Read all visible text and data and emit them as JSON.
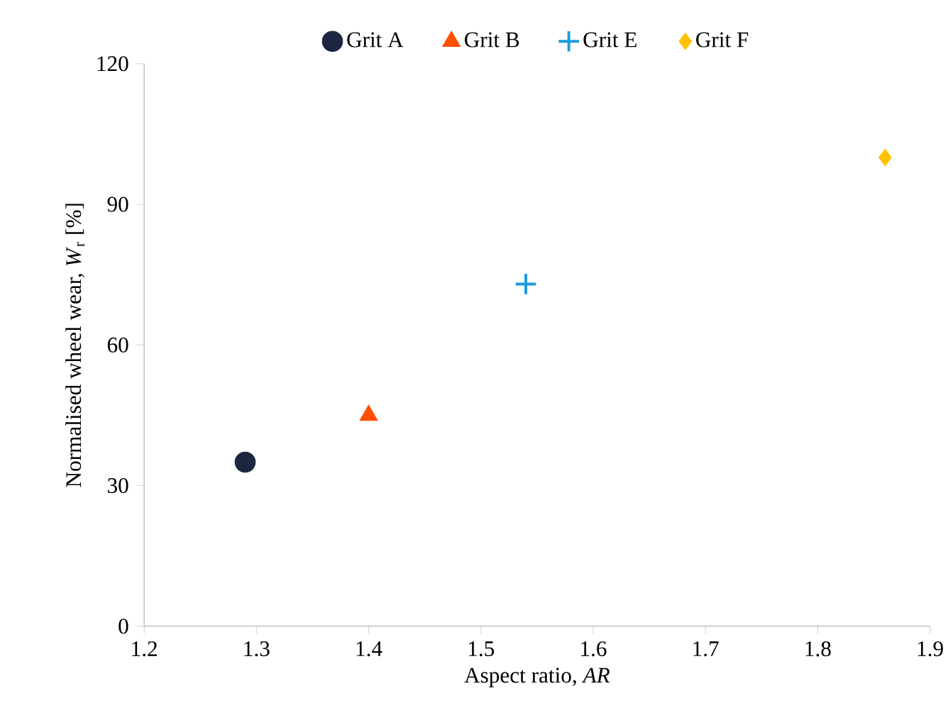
{
  "chart_data": {
    "type": "scatter",
    "xlabel": "Aspect ratio, *AR*",
    "ylabel": "Normalised wheel wear, *W*$_{r}$ [%]",
    "series": [
      {
        "name": "Grit A",
        "color": "#1c2640",
        "marker": "circle",
        "x": [
          1.29
        ],
        "values": [
          35
        ]
      },
      {
        "name": "Grit B",
        "color": "#ff4f00",
        "marker": "triangle",
        "x": [
          1.4
        ],
        "values": [
          45
        ]
      },
      {
        "name": "Grit E",
        "color": "#1c9be0",
        "marker": "cross",
        "x": [
          1.54
        ],
        "values": [
          73
        ]
      },
      {
        "name": "Grit F",
        "color": "#ffc000",
        "marker": "diamond",
        "x": [
          1.86
        ],
        "values": [
          100
        ]
      }
    ],
    "xlim": [
      1.2,
      1.9
    ],
    "ylim": [
      0,
      120
    ],
    "xticks": [
      {
        "value": 1.2,
        "label": "1.2"
      },
      {
        "value": 1.3,
        "label": "1.3"
      },
      {
        "value": 1.4,
        "label": "1.4"
      },
      {
        "value": 1.5,
        "label": "1.5"
      },
      {
        "value": 1.6,
        "label": "1.6"
      },
      {
        "value": 1.7,
        "label": "1.7"
      },
      {
        "value": 1.8,
        "label": "1.8"
      },
      {
        "value": 1.9,
        "label": "1.9"
      }
    ],
    "yticks": [
      0,
      30,
      60,
      90,
      120
    ],
    "grid": false,
    "legend": "top"
  }
}
